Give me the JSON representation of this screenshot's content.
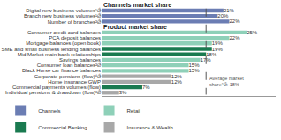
{
  "chart_data": {
    "type": "bar",
    "orientation": "horizontal",
    "categories": [
      "Digital new business volumes¹⦳",
      "Branch new business volumes¹⦳",
      "Number of branches²⦳",
      "Consumer credit card balances",
      "PCA deposit balances",
      "Mortgage balances (open book)",
      "SME and small business lending balances",
      "Mid Market main bank relationships",
      "Savings balances",
      "Consumer loan balances²⦳",
      "Black Horse car finance balances",
      "Corporate pensions (flow)⁴⦳",
      "Home insurance GWP",
      "Commercial payments volumes (flow)",
      "Individual pensions & drawdown (flow)³⦳"
    ],
    "section_titles": [
      {
        "text": "Channels market share",
        "category": "Digital new business volumes¹⦳"
      },
      {
        "text": "Product market share",
        "category": "Consumer credit card balances"
      }
    ],
    "series": [
      {
        "name": "Channels",
        "color": "#6b7db3",
        "values": [
          21,
          20,
          22,
          null,
          null,
          null,
          null,
          null,
          null,
          null,
          null,
          null,
          null,
          null,
          null
        ],
        "value_labels": [
          "21%",
          "20%",
          "22%",
          null,
          null,
          null,
          null,
          null,
          null,
          null,
          null,
          null,
          null,
          null,
          null
        ]
      },
      {
        "name": "Retail",
        "color": "#8ed0b8",
        "values": [
          null,
          null,
          null,
          25,
          22,
          19,
          null,
          null,
          17,
          15,
          15,
          null,
          null,
          null,
          null
        ],
        "value_labels": [
          null,
          null,
          null,
          "25%",
          "22%",
          "19%",
          null,
          null,
          "17%",
          "15%",
          "15%",
          null,
          null,
          null,
          null
        ]
      },
      {
        "name": "Commercial Banking",
        "color": "#1a7a50",
        "values": [
          null,
          null,
          null,
          null,
          null,
          null,
          19,
          18,
          null,
          null,
          null,
          null,
          null,
          7,
          null
        ],
        "value_labels": [
          null,
          null,
          null,
          null,
          null,
          null,
          "19%",
          "18%",
          null,
          null,
          null,
          null,
          null,
          "7%",
          null
        ]
      },
      {
        "name": "Insurance & Wealth",
        "color": "#a8a8a8",
        "values": [
          null,
          null,
          null,
          null,
          null,
          null,
          null,
          null,
          null,
          null,
          null,
          12,
          12,
          null,
          3
        ],
        "value_labels": [
          null,
          null,
          null,
          null,
          null,
          null,
          null,
          null,
          null,
          null,
          null,
          "12%",
          "12%",
          null,
          "3%"
        ]
      }
    ],
    "reference_line": {
      "x": 18,
      "label": "Average market\nshare²⦳: 18%"
    },
    "xlim": [
      0,
      30
    ],
    "xticks": [],
    "tick_labels": "y",
    "grid": false,
    "data_labels": true
  }
}
